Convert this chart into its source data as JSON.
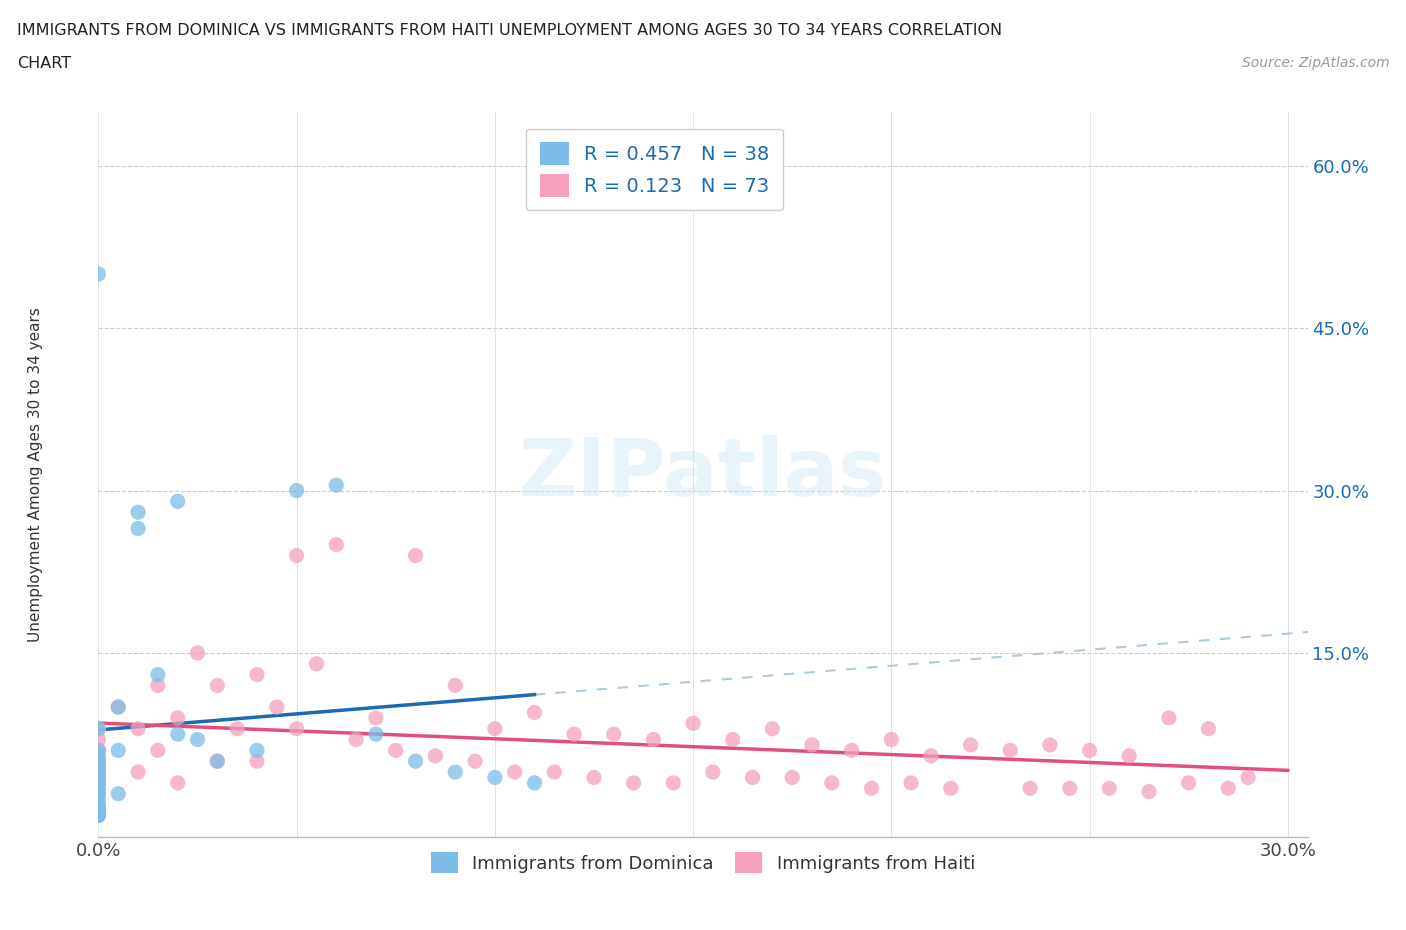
{
  "title_line1": "IMMIGRANTS FROM DOMINICA VS IMMIGRANTS FROM HAITI UNEMPLOYMENT AMONG AGES 30 TO 34 YEARS CORRELATION",
  "title_line2": "CHART",
  "source_text": "Source: ZipAtlas.com",
  "ylabel": "Unemployment Among Ages 30 to 34 years",
  "xlim": [
    0.0,
    0.305
  ],
  "ylim": [
    -0.02,
    0.65
  ],
  "xticks": [
    0.0,
    0.05,
    0.1,
    0.15,
    0.2,
    0.25,
    0.3
  ],
  "yticks": [
    0.0,
    0.15,
    0.3,
    0.45,
    0.6
  ],
  "dominica_color": "#7bbde8",
  "haiti_color": "#f4a0bc",
  "dominica_R": 0.457,
  "dominica_N": 38,
  "haiti_R": 0.123,
  "haiti_N": 73,
  "trend_color_dominica": "#1a6bb5",
  "trend_color_haiti": "#e0507a",
  "trend_dash_color": "#aaccee",
  "legend_R_N_color": "#1a6bb5",
  "background_color": "#ffffff",
  "dominica_x": [
    0.0,
    0.0,
    0.0,
    0.0,
    0.0,
    0.0,
    0.0,
    0.0,
    0.0,
    0.0,
    0.0,
    0.0,
    0.0,
    0.0,
    0.0,
    0.0,
    0.0,
    0.0,
    0.0,
    0.0,
    0.005,
    0.005,
    0.005,
    0.01,
    0.01,
    0.015,
    0.02,
    0.02,
    0.025,
    0.03,
    0.04,
    0.05,
    0.06,
    0.07,
    0.08,
    0.09,
    0.1,
    0.11
  ],
  "dominica_y": [
    0.5,
    0.08,
    0.06,
    0.055,
    0.05,
    0.045,
    0.04,
    0.035,
    0.03,
    0.025,
    0.02,
    0.015,
    0.01,
    0.008,
    0.005,
    0.003,
    0.002,
    0.001,
    0.0,
    0.0,
    0.1,
    0.06,
    0.02,
    0.28,
    0.265,
    0.13,
    0.29,
    0.075,
    0.07,
    0.05,
    0.06,
    0.3,
    0.305,
    0.075,
    0.05,
    0.04,
    0.035,
    0.03
  ],
  "haiti_x": [
    0.0,
    0.0,
    0.0,
    0.0,
    0.0,
    0.0,
    0.0,
    0.0,
    0.0,
    0.0,
    0.005,
    0.01,
    0.01,
    0.015,
    0.015,
    0.02,
    0.02,
    0.025,
    0.03,
    0.03,
    0.035,
    0.04,
    0.04,
    0.045,
    0.05,
    0.05,
    0.055,
    0.06,
    0.065,
    0.07,
    0.075,
    0.08,
    0.085,
    0.09,
    0.095,
    0.1,
    0.105,
    0.11,
    0.115,
    0.12,
    0.125,
    0.13,
    0.135,
    0.14,
    0.145,
    0.15,
    0.155,
    0.16,
    0.165,
    0.17,
    0.175,
    0.18,
    0.185,
    0.19,
    0.195,
    0.2,
    0.205,
    0.21,
    0.215,
    0.22,
    0.23,
    0.235,
    0.24,
    0.245,
    0.25,
    0.255,
    0.26,
    0.265,
    0.27,
    0.275,
    0.28,
    0.285,
    0.29
  ],
  "haiti_y": [
    0.08,
    0.07,
    0.06,
    0.05,
    0.045,
    0.04,
    0.035,
    0.03,
    0.025,
    0.02,
    0.1,
    0.08,
    0.04,
    0.12,
    0.06,
    0.09,
    0.03,
    0.15,
    0.12,
    0.05,
    0.08,
    0.13,
    0.05,
    0.1,
    0.24,
    0.08,
    0.14,
    0.25,
    0.07,
    0.09,
    0.06,
    0.24,
    0.055,
    0.12,
    0.05,
    0.08,
    0.04,
    0.095,
    0.04,
    0.075,
    0.035,
    0.075,
    0.03,
    0.07,
    0.03,
    0.085,
    0.04,
    0.07,
    0.035,
    0.08,
    0.035,
    0.065,
    0.03,
    0.06,
    0.025,
    0.07,
    0.03,
    0.055,
    0.025,
    0.065,
    0.06,
    0.025,
    0.065,
    0.025,
    0.06,
    0.025,
    0.055,
    0.022,
    0.09,
    0.03,
    0.08,
    0.025,
    0.035
  ]
}
